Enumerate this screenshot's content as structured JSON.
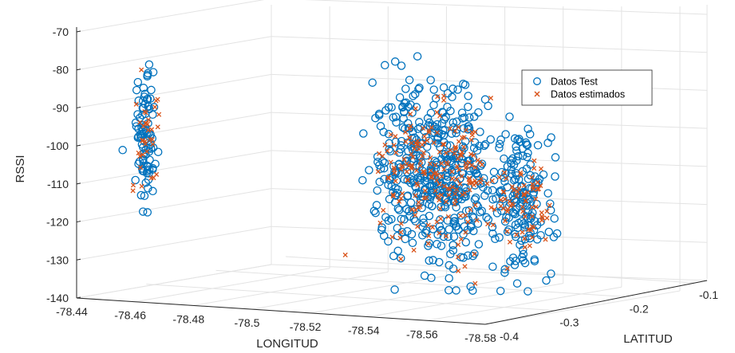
{
  "chart_data": {
    "type": "scatter",
    "title": "",
    "xlabel": "LONGITUD",
    "ylabel": "LATITUD",
    "zlabel": "RSSI",
    "x_ticks": [
      "-78.44",
      "-78.46",
      "-78.48",
      "-78.5",
      "-78.52",
      "-78.54",
      "-78.56",
      "-78.58"
    ],
    "y_ticks": [
      "-0.4",
      "-0.3",
      "-0.2",
      "-0.1"
    ],
    "z_ticks": [
      "-70",
      "-80",
      "-90",
      "-100",
      "-110",
      "-120",
      "-130",
      "-140"
    ],
    "xlim": [
      -78.44,
      -78.58
    ],
    "ylim": [
      -0.4,
      -0.1
    ],
    "zlim": [
      -140,
      -70
    ],
    "grid": true,
    "legend_position": "top-right",
    "series": [
      {
        "name": "Datos Test",
        "marker": "circle",
        "color": "#0072BD",
        "clusters": [
          {
            "x_center": -78.4605,
            "x_spread": 0.0016,
            "z_center": -97,
            "z_spread": 11,
            "count": 90
          },
          {
            "x_center": -78.5258,
            "x_spread": 0.0075,
            "z_center": -106,
            "z_spread": 12,
            "count": 260
          },
          {
            "x_center": -78.54,
            "x_spread": 0.006,
            "z_center": -108,
            "z_spread": 12,
            "count": 200
          },
          {
            "x_center": -78.562,
            "x_spread": 0.005,
            "z_center": -113,
            "z_spread": 10,
            "count": 170
          }
        ]
      },
      {
        "name": "Datos estimados",
        "marker": "x",
        "color": "#D95319",
        "clusters": [
          {
            "x_center": -78.461,
            "x_spread": 0.0015,
            "z_center": -99,
            "z_spread": 8,
            "count": 35
          },
          {
            "x_center": -78.526,
            "x_spread": 0.007,
            "z_center": -106,
            "z_spread": 9,
            "count": 120
          },
          {
            "x_center": -78.542,
            "x_spread": 0.0055,
            "z_center": -107,
            "z_spread": 9,
            "count": 90
          },
          {
            "x_center": -78.563,
            "x_spread": 0.005,
            "z_center": -114,
            "z_spread": 7,
            "count": 70
          }
        ]
      }
    ]
  }
}
